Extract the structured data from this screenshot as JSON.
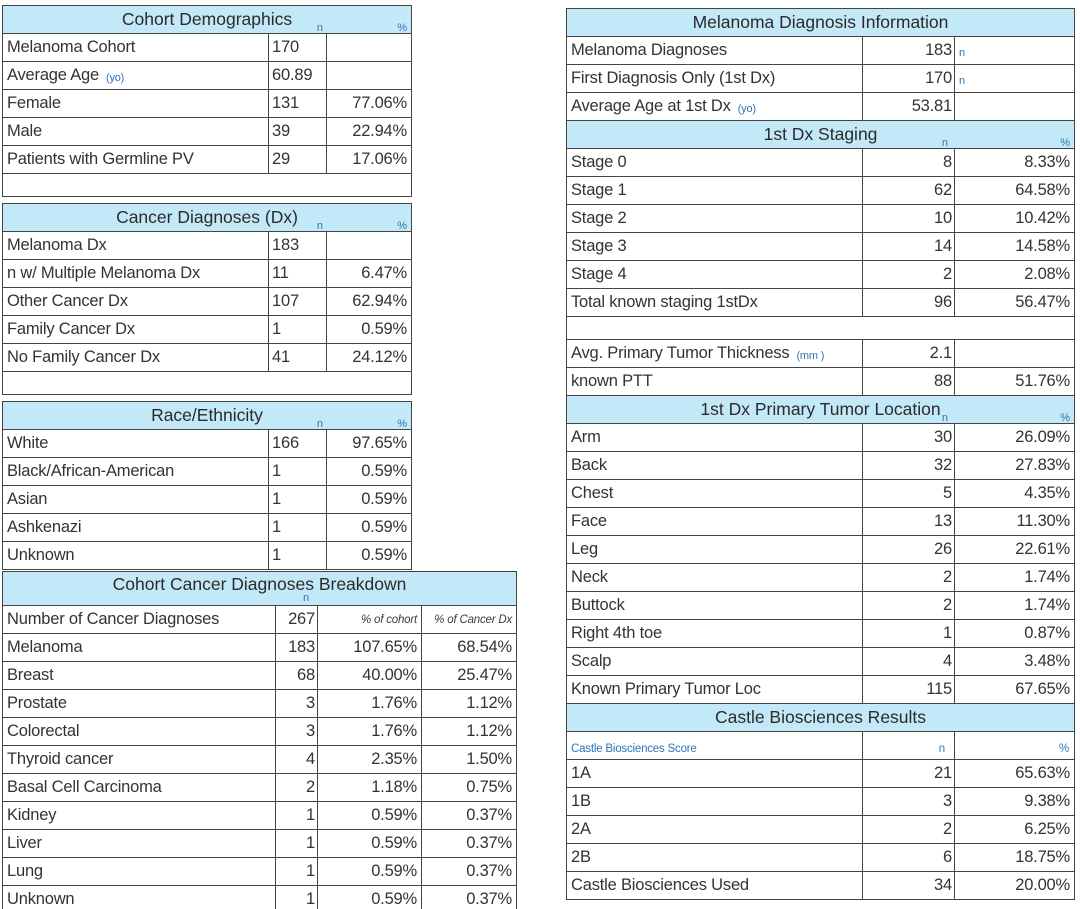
{
  "colors": {
    "header_fill": "#c3e8f8",
    "border": "#444444",
    "accent_blue": "#2e75b6",
    "text": "#333333"
  },
  "left_tables": [
    {
      "title": "Cohort Demographics",
      "header_subs": [
        "n",
        "%"
      ],
      "rows": [
        {
          "label": "Melanoma Cohort",
          "values": [
            "170",
            ""
          ]
        },
        {
          "label": "Average Age",
          "suffix": "(yo)",
          "values": [
            "60.89",
            ""
          ]
        },
        {
          "label": "Female",
          "values": [
            "131",
            "77.06%"
          ]
        },
        {
          "label": "Male",
          "values": [
            "39",
            "22.94%"
          ]
        },
        {
          "label": "Patients with Germline PV",
          "values": [
            "29",
            "17.06%"
          ]
        },
        {
          "blank": true
        }
      ]
    },
    {
      "title": "Cancer Diagnoses (Dx)",
      "header_subs": [
        "n",
        "%"
      ],
      "rows": [
        {
          "label": "Melanoma Dx",
          "values": [
            "183",
            ""
          ]
        },
        {
          "label": "n w/ Multiple Melanoma Dx",
          "values": [
            "11",
            "6.47%"
          ]
        },
        {
          "label": "Other Cancer Dx",
          "values": [
            "107",
            "62.94%"
          ]
        },
        {
          "label": "Family Cancer Dx",
          "values": [
            "1",
            "0.59%"
          ]
        },
        {
          "label": "No Family Cancer Dx",
          "values": [
            "41",
            "24.12%"
          ]
        },
        {
          "blank": true
        }
      ]
    },
    {
      "title": "Race/Ethnicity",
      "header_subs": [
        "n",
        "%"
      ],
      "rows": [
        {
          "label": "White",
          "values": [
            "166",
            "97.65%"
          ]
        },
        {
          "label": "Black/African-American",
          "values": [
            "1",
            "0.59%"
          ]
        },
        {
          "label": "Asian",
          "values": [
            "1",
            "0.59%"
          ]
        },
        {
          "label": "Ashkenazi",
          "values": [
            "1",
            "0.59%"
          ]
        },
        {
          "label": "Unknown",
          "values": [
            "1",
            "0.59%"
          ]
        }
      ]
    },
    {
      "title": "Cohort Cancer Diagnoses Breakdown",
      "header_subs": [
        "n"
      ],
      "rows": [
        {
          "label": "Number of Cancer Diagnoses",
          "values": [
            "267",
            "% of cohort",
            "% of Cancer Dx"
          ],
          "style": "colheads"
        },
        {
          "label": "Melanoma",
          "values": [
            "183",
            "107.65%",
            "68.54%"
          ]
        },
        {
          "label": "Breast",
          "values": [
            "68",
            "40.00%",
            "25.47%"
          ]
        },
        {
          "label": "Prostate",
          "values": [
            "3",
            "1.76%",
            "1.12%"
          ]
        },
        {
          "label": "Colorectal",
          "values": [
            "3",
            "1.76%",
            "1.12%"
          ]
        },
        {
          "label": "Thyroid cancer",
          "values": [
            "4",
            "2.35%",
            "1.50%"
          ]
        },
        {
          "label": "Basal Cell Carcinoma",
          "values": [
            "2",
            "1.18%",
            "0.75%"
          ]
        },
        {
          "label": "Kidney",
          "values": [
            "1",
            "0.59%",
            "0.37%"
          ]
        },
        {
          "label": "Liver",
          "values": [
            "1",
            "0.59%",
            "0.37%"
          ]
        },
        {
          "label": "Lung",
          "values": [
            "1",
            "0.59%",
            "0.37%"
          ]
        },
        {
          "label": "Unknown",
          "values": [
            "1",
            "0.59%",
            "0.37%"
          ]
        }
      ]
    }
  ],
  "right_tables": [
    {
      "title": "Melanoma Diagnosis Information",
      "rows": [
        {
          "label": "Melanoma Diagnoses",
          "values": [
            "183"
          ],
          "unit": "n"
        },
        {
          "label": "First Diagnosis Only (1st Dx)",
          "values": [
            "170"
          ],
          "unit": "n"
        },
        {
          "label": "Average Age at 1st Dx",
          "suffix": "(yo)",
          "values": [
            "53.81",
            ""
          ]
        }
      ]
    },
    {
      "title": "1st Dx Staging",
      "header_subs": [
        "n",
        "%"
      ],
      "rows": [
        {
          "label": "Stage 0",
          "values": [
            "8",
            "8.33%"
          ]
        },
        {
          "label": "Stage 1",
          "values": [
            "62",
            "64.58%"
          ]
        },
        {
          "label": "Stage 2",
          "values": [
            "10",
            "10.42%"
          ]
        },
        {
          "label": "Stage 3",
          "values": [
            "14",
            "14.58%"
          ]
        },
        {
          "label": "Stage 4",
          "values": [
            "2",
            "2.08%"
          ]
        },
        {
          "label": "Total known staging 1stDx",
          "values": [
            "96",
            "56.47%"
          ]
        },
        {
          "blank": true
        },
        {
          "label": "Avg. Primary Tumor Thickness",
          "suffix": "(mm )",
          "values": [
            "2.1",
            ""
          ]
        },
        {
          "label": "known PTT",
          "values": [
            "88",
            "51.76%"
          ]
        }
      ]
    },
    {
      "title": "1st Dx Primary Tumor Location",
      "header_subs": [
        "n",
        "%"
      ],
      "rows": [
        {
          "label": "Arm",
          "values": [
            "30",
            "26.09%"
          ]
        },
        {
          "label": "Back",
          "values": [
            "32",
            "27.83%"
          ]
        },
        {
          "label": "Chest",
          "values": [
            "5",
            "4.35%"
          ]
        },
        {
          "label": "Face",
          "values": [
            "13",
            "11.30%"
          ]
        },
        {
          "label": "Leg",
          "values": [
            "26",
            "22.61%"
          ]
        },
        {
          "label": "Neck",
          "values": [
            "2",
            "1.74%"
          ]
        },
        {
          "label": "Buttock",
          "values": [
            "2",
            "1.74%"
          ]
        },
        {
          "label": "Right 4th toe",
          "values": [
            "1",
            "0.87%"
          ]
        },
        {
          "label": "Scalp",
          "values": [
            "4",
            "3.48%"
          ]
        },
        {
          "label": "Known Primary Tumor Loc",
          "values": [
            "115",
            "67.65%"
          ]
        }
      ]
    },
    {
      "title": "Castle Biosciences Results",
      "rows": [
        {
          "label": "Castle Biosciences Score",
          "values": [
            "n",
            "%"
          ],
          "style": "accent"
        },
        {
          "label": "1A",
          "values": [
            "21",
            "65.63%"
          ]
        },
        {
          "label": "1B",
          "values": [
            "3",
            "9.38%"
          ]
        },
        {
          "label": "2A",
          "values": [
            "2",
            "6.25%"
          ]
        },
        {
          "label": "2B",
          "values": [
            "6",
            "18.75%"
          ]
        },
        {
          "label": "Castle Biosciences Used",
          "values": [
            "34",
            "20.00%"
          ]
        }
      ]
    }
  ]
}
